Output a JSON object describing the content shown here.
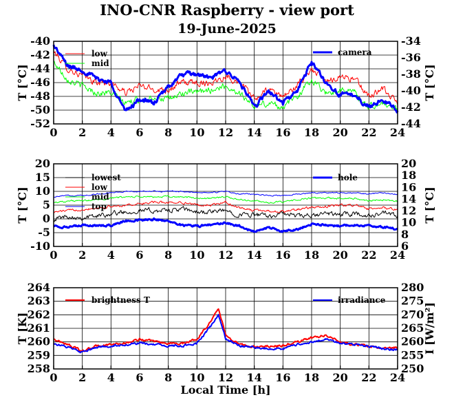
{
  "title": "INO-CNR Raspberry - view port",
  "subtitle": "19-June-2025",
  "xlabel": "Local Time [h]",
  "colors": {
    "black": "#000000",
    "red": "#ff0000",
    "green": "#00ff00",
    "blue": "#0000ff",
    "grid": "#000000"
  },
  "chart_data": [
    {
      "type": "line",
      "panel": "top",
      "xlim": [
        0,
        24
      ],
      "xticks": [
        0,
        2,
        4,
        6,
        8,
        10,
        12,
        14,
        16,
        18,
        20,
        22,
        24
      ],
      "ylabel_left": "T [°C]",
      "ylabel_right": "T [°C]",
      "ylim_left": [
        -52,
        -40
      ],
      "yticks_left": [
        -52,
        -50,
        -48,
        -46,
        -44,
        -42,
        -40
      ],
      "ylim_right": [
        -44,
        -34
      ],
      "yticks_right": [
        -44,
        -42,
        -40,
        -38,
        -36,
        -34
      ],
      "legend_left": [
        "low",
        "mid"
      ],
      "legend_right": [
        "camera"
      ],
      "grid": true,
      "x": [
        0,
        1,
        2,
        3,
        4,
        5,
        6,
        7,
        8,
        9,
        10,
        11,
        12,
        13,
        14,
        15,
        16,
        17,
        18,
        19,
        20,
        21,
        22,
        23,
        24
      ],
      "series": [
        {
          "name": "low",
          "color": "red",
          "axis": "left",
          "width": 1,
          "noise": 0.9,
          "values": [
            -41.5,
            -44,
            -45,
            -46,
            -46,
            -47.5,
            -46.5,
            -47,
            -47,
            -46,
            -46,
            -46,
            -45,
            -46,
            -48.5,
            -47,
            -48,
            -46.5,
            -44,
            -46,
            -45,
            -45.5,
            -48,
            -47,
            -49
          ]
        },
        {
          "name": "mid",
          "color": "green",
          "axis": "left",
          "width": 1,
          "noise": 0.9,
          "values": [
            -43,
            -45.5,
            -46.5,
            -47.5,
            -47.5,
            -49,
            -48.5,
            -48,
            -48.5,
            -47.5,
            -47.5,
            -47,
            -46.5,
            -47.5,
            -49.5,
            -49,
            -49.5,
            -48,
            -45.5,
            -47.5,
            -47,
            -47.5,
            -49.5,
            -49,
            -50
          ]
        },
        {
          "name": "camera",
          "color": "blue",
          "axis": "right",
          "width": 3,
          "noise": 0.5,
          "values": [
            -34.5,
            -37,
            -37.5,
            -38.5,
            -39,
            -42.5,
            -41,
            -41.5,
            -39.5,
            -38,
            -38,
            -38.5,
            -37.5,
            -39,
            -42,
            -40,
            -41.5,
            -40,
            -36.5,
            -39,
            -40.5,
            -40.5,
            -42,
            -41,
            -42.5
          ]
        }
      ]
    },
    {
      "type": "line",
      "panel": "middle",
      "xlim": [
        0,
        24
      ],
      "xticks": [
        0,
        2,
        4,
        6,
        8,
        10,
        12,
        14,
        16,
        18,
        20,
        22,
        24
      ],
      "ylabel_left": "T [°C]",
      "ylabel_right": "T [°C]",
      "ylim_left": [
        -10,
        20
      ],
      "yticks_left": [
        -10,
        -5,
        0,
        5,
        10,
        15,
        20
      ],
      "ylim_right": [
        6,
        20
      ],
      "yticks_right": [
        6,
        8,
        10,
        12,
        14,
        16,
        18,
        20
      ],
      "legend_left": [
        "lowest",
        "low",
        "mid",
        "top"
      ],
      "legend_right": [
        "hole"
      ],
      "grid": true,
      "x": [
        0,
        1,
        2,
        3,
        4,
        5,
        6,
        7,
        8,
        9,
        10,
        11,
        12,
        13,
        14,
        15,
        16,
        17,
        18,
        19,
        20,
        21,
        22,
        23,
        24
      ],
      "series": [
        {
          "name": "lowest",
          "color": "black",
          "axis": "left",
          "width": 1,
          "noise": 1.6,
          "values": [
            0,
            1,
            0.5,
            1,
            2,
            2.5,
            3,
            3,
            3,
            3.5,
            2.5,
            2.5,
            3,
            1.5,
            1.5,
            1,
            2,
            1,
            1,
            2,
            1.5,
            2,
            1,
            2,
            1
          ]
        },
        {
          "name": "low",
          "color": "red",
          "axis": "left",
          "width": 1,
          "noise": 0.8,
          "values": [
            2.5,
            3,
            3.5,
            4,
            4.5,
            5,
            5.5,
            6,
            6,
            6,
            5,
            5,
            6,
            4,
            3,
            3,
            2.5,
            3.5,
            4,
            4.5,
            5,
            5,
            3.5,
            4,
            3.5
          ]
        },
        {
          "name": "mid",
          "color": "green",
          "axis": "left",
          "width": 1,
          "noise": 0.6,
          "values": [
            6,
            6.5,
            6.5,
            7,
            7.5,
            8,
            8,
            8,
            8,
            8,
            7.5,
            7.5,
            8,
            7,
            6.5,
            6,
            6,
            7,
            7.5,
            7.5,
            7.5,
            7.5,
            6.5,
            7,
            6.5
          ]
        },
        {
          "name": "top",
          "color": "blue",
          "axis": "left",
          "width": 1,
          "noise": 0.4,
          "values": [
            8,
            8.5,
            8.5,
            9,
            9.5,
            10,
            10,
            10,
            10,
            10,
            9.5,
            9.5,
            10,
            9,
            9,
            8.5,
            8.5,
            9,
            9.5,
            9.5,
            9.5,
            9.5,
            9,
            9.5,
            9
          ]
        },
        {
          "name": "hole",
          "color": "blue",
          "axis": "right",
          "width": 3,
          "noise": 0.3,
          "values": [
            9.5,
            9.2,
            9.6,
            9.5,
            9.6,
            10.3,
            10.5,
            10.6,
            10.3,
            9.6,
            9.4,
            9.7,
            10,
            9.4,
            8.5,
            9.2,
            8.5,
            8.9,
            9.8,
            9.6,
            9.5,
            9.6,
            9.5,
            9.3,
            8.9
          ]
        }
      ]
    },
    {
      "type": "line",
      "panel": "bottom",
      "xlim": [
        0,
        24
      ],
      "xticks": [
        0,
        2,
        4,
        6,
        8,
        10,
        12,
        14,
        16,
        18,
        20,
        22,
        24
      ],
      "ylabel_left": "T [K]",
      "ylabel_right": "I [W/m²]",
      "ylim_left": [
        258,
        264
      ],
      "yticks_left": [
        258,
        259,
        260,
        261,
        262,
        263,
        264
      ],
      "ylim_right": [
        250,
        280
      ],
      "yticks_right": [
        250,
        255,
        260,
        265,
        270,
        275,
        280
      ],
      "legend_left": [
        "brightness T"
      ],
      "legend_right": [
        "irradiance"
      ],
      "grid": true,
      "x": [
        0,
        1,
        2,
        3,
        4,
        5,
        6,
        7,
        8,
        9,
        10,
        11,
        11.5,
        12,
        13,
        14,
        15,
        16,
        17,
        18,
        19,
        20,
        21,
        22,
        23,
        24
      ],
      "series": [
        {
          "name": "brightness T",
          "color": "red",
          "axis": "left",
          "width": 2,
          "noise": 0.15,
          "values": [
            260.2,
            259.8,
            259.3,
            259.7,
            259.8,
            259.9,
            260.2,
            260,
            259.9,
            259.9,
            260.2,
            261.6,
            262.5,
            260.5,
            259.8,
            259.6,
            259.7,
            259.7,
            260,
            260.3,
            260.5,
            260,
            259.8,
            259.7,
            259.5,
            259.6
          ]
        },
        {
          "name": "irradiance",
          "color": "blue",
          "axis": "right",
          "width": 2,
          "noise": 0.7,
          "values": [
            259.5,
            258,
            256,
            258,
            258.5,
            259,
            259.5,
            259,
            258.5,
            258.5,
            259.5,
            266,
            270,
            261,
            258.5,
            258,
            257.5,
            257.5,
            259,
            260,
            261,
            259.5,
            259,
            258.5,
            257.5,
            257
          ]
        }
      ]
    }
  ]
}
